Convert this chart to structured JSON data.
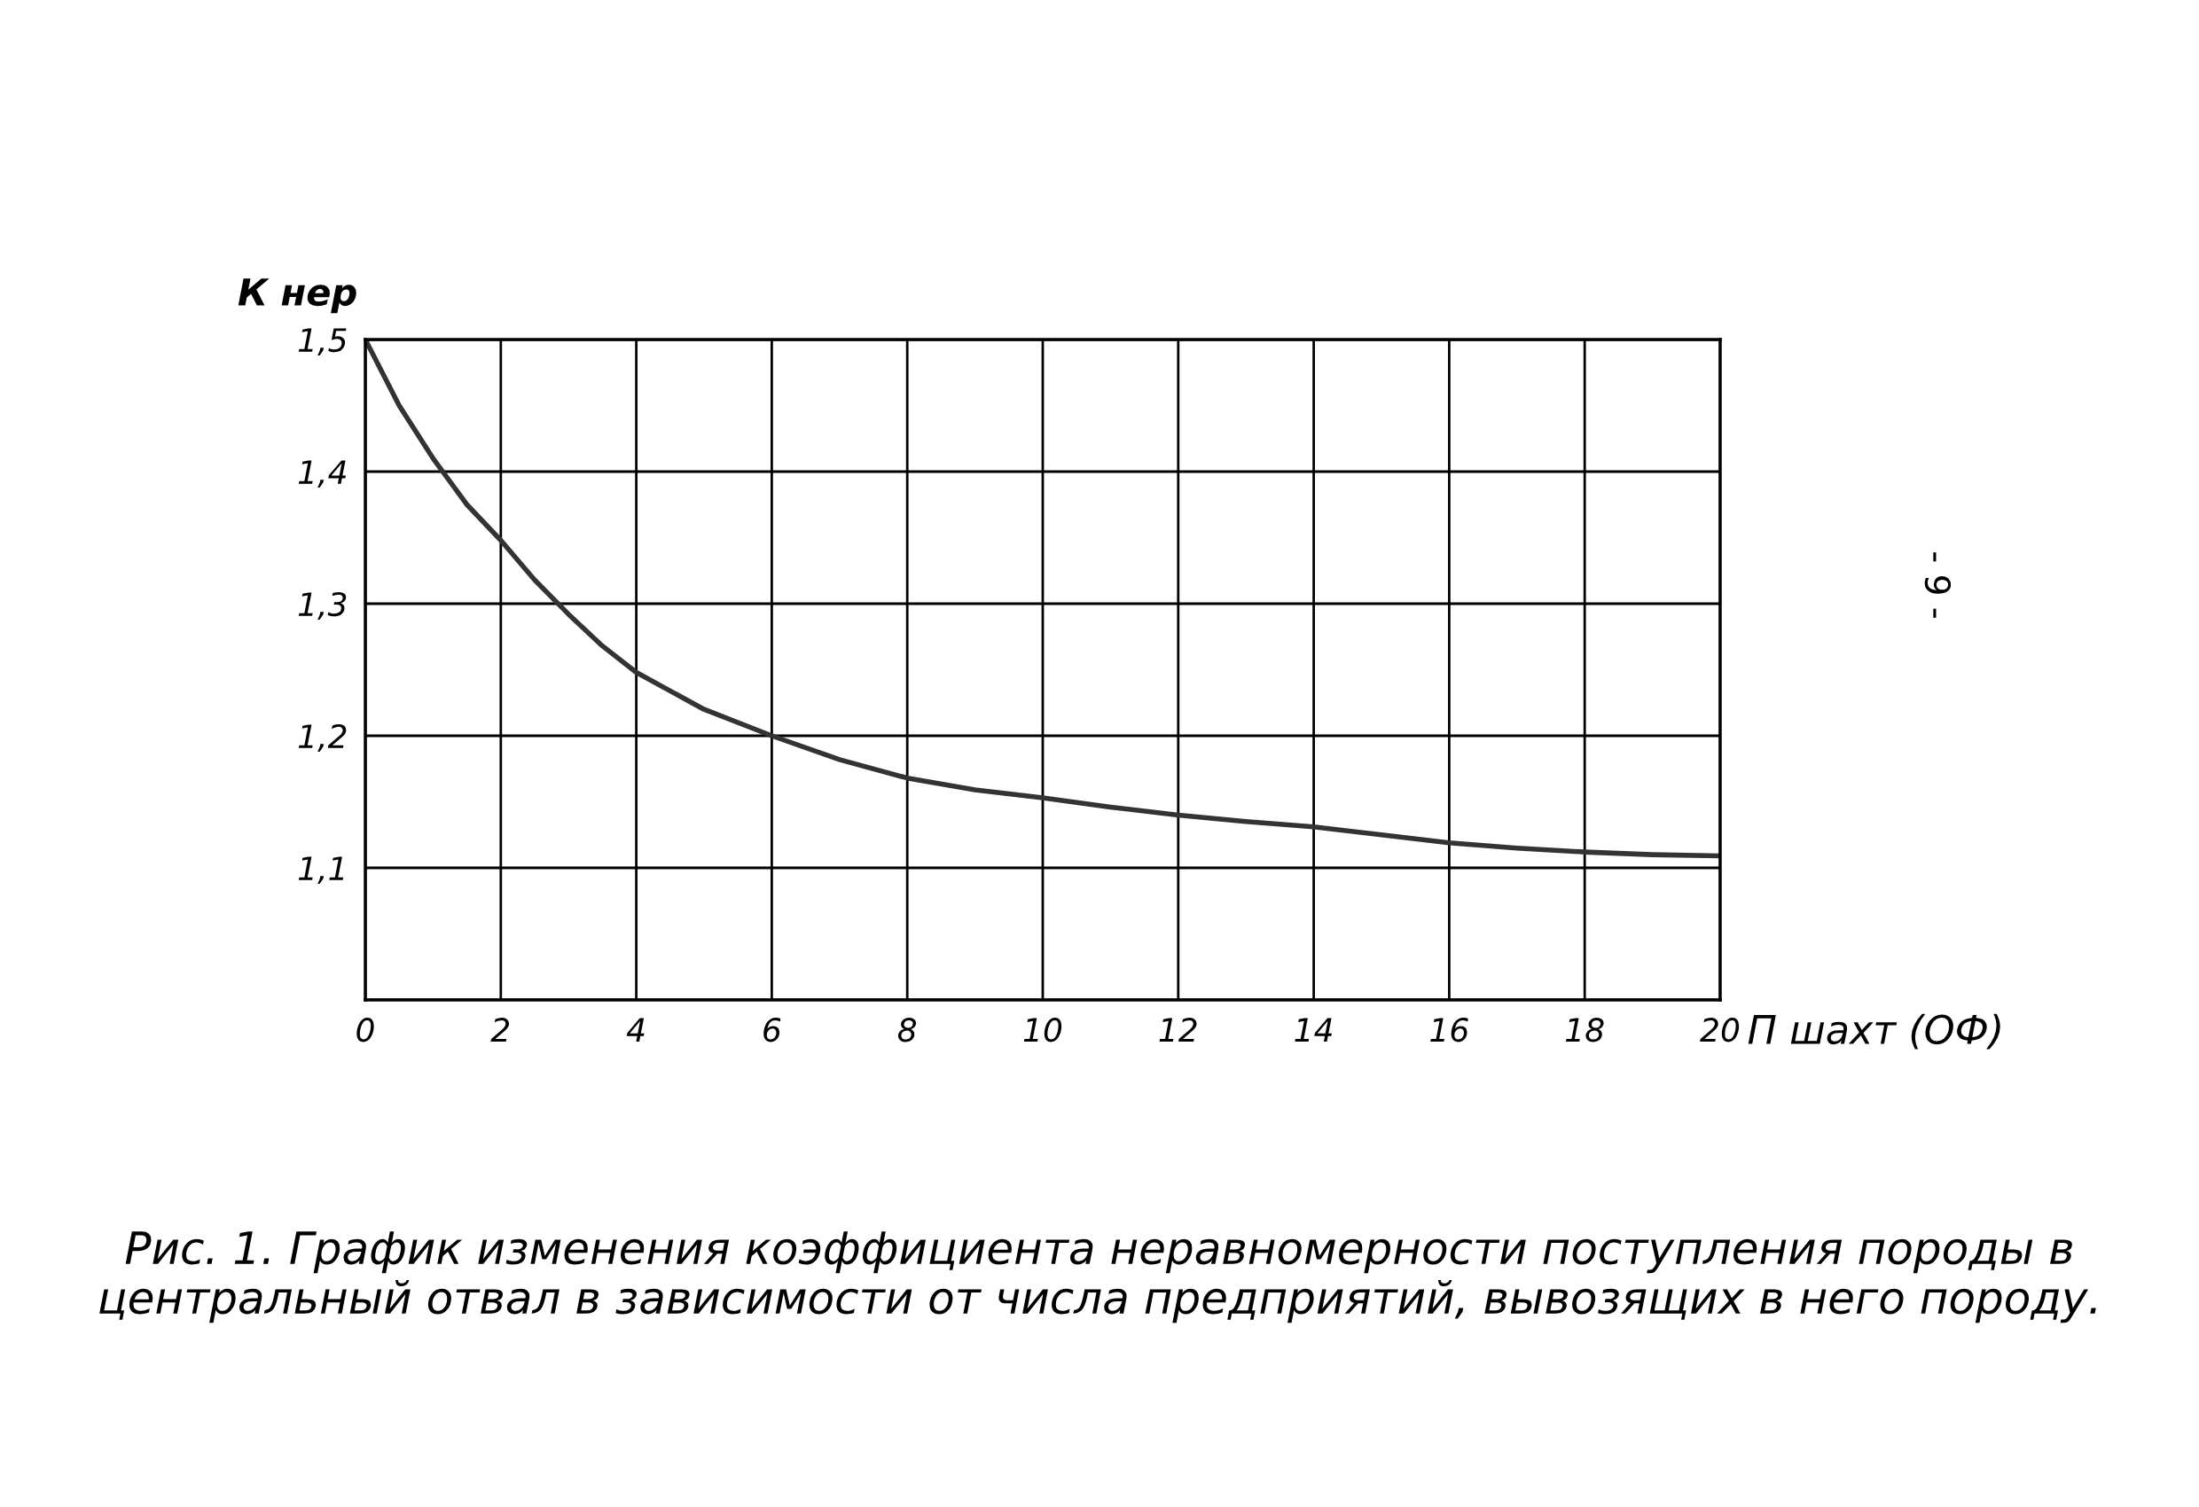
{
  "chart_data": {
    "type": "line",
    "title": "Рис. 1. График изменения коэффициента неравномерности поступления породы в центральный отвал в зависимости от числа предприятий, вывозящих в него породу.",
    "xlabel": "П шахт (ОФ)",
    "ylabel": "К нер",
    "x": [
      0,
      0.5,
      1,
      1.5,
      2,
      2.5,
      3,
      3.5,
      4,
      5,
      6,
      7,
      8,
      9,
      10,
      11,
      12,
      13,
      14,
      15,
      16,
      17,
      18,
      19,
      20
    ],
    "series": [
      {
        "color": "#333333",
        "values": [
          1.5,
          1.45,
          1.41,
          1.375,
          1.348,
          1.318,
          1.292,
          1.268,
          1.248,
          1.22,
          1.2,
          1.182,
          1.168,
          1.159,
          1.153,
          1.146,
          1.14,
          1.135,
          1.131,
          1.125,
          1.119,
          1.115,
          1.112,
          1.11,
          1.109
        ]
      }
    ],
    "xlim": [
      0,
      20
    ],
    "xticks": [
      0,
      2,
      4,
      6,
      8,
      10,
      12,
      14,
      16,
      18,
      20
    ],
    "ylim": [
      1.0,
      1.5
    ],
    "yticks": [
      {
        "value": 1.0,
        "label": null
      },
      {
        "value": 1.1,
        "label": "1,1"
      },
      {
        "value": 1.2,
        "label": "1,2"
      },
      {
        "value": 1.3,
        "label": "1,3"
      },
      {
        "value": 1.4,
        "label": "1,4"
      },
      {
        "value": 1.5,
        "label": "1,5"
      }
    ],
    "grid": true,
    "legend": false,
    "marker": "none",
    "line_style": "solid",
    "annotations": [
      "- 9 -"
    ]
  }
}
